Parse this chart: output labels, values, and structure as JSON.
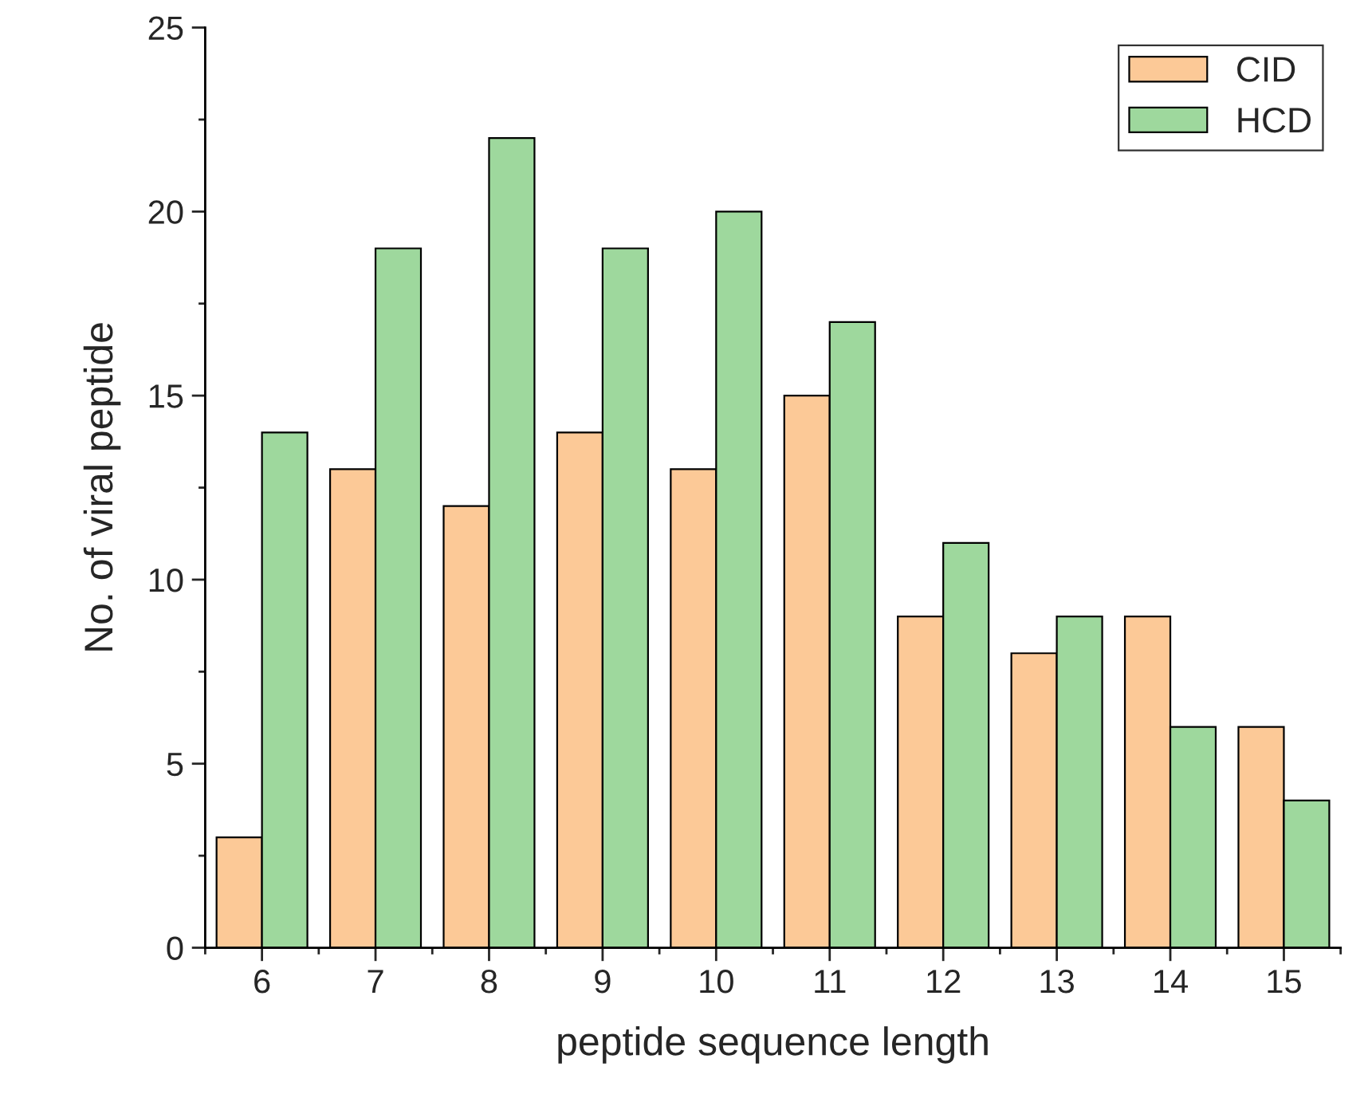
{
  "chart_data": {
    "type": "bar",
    "xlabel": "peptide sequence length",
    "ylabel": "No. of viral peptide",
    "categories": [
      "6",
      "7",
      "8",
      "9",
      "10",
      "11",
      "12",
      "13",
      "14",
      "15"
    ],
    "series": [
      {
        "name": "CID",
        "color": "#fcc997",
        "values": [
          3,
          13,
          12,
          14,
          13,
          15,
          9,
          8,
          9,
          6
        ]
      },
      {
        "name": "HCD",
        "color": "#9ed89d",
        "values": [
          14,
          19,
          22,
          19,
          20,
          17,
          11,
          9,
          6,
          4
        ]
      }
    ],
    "ylim": [
      0,
      25
    ],
    "yticks": [
      0,
      5,
      10,
      15,
      20,
      25
    ],
    "grid": false,
    "legend": "top right"
  }
}
